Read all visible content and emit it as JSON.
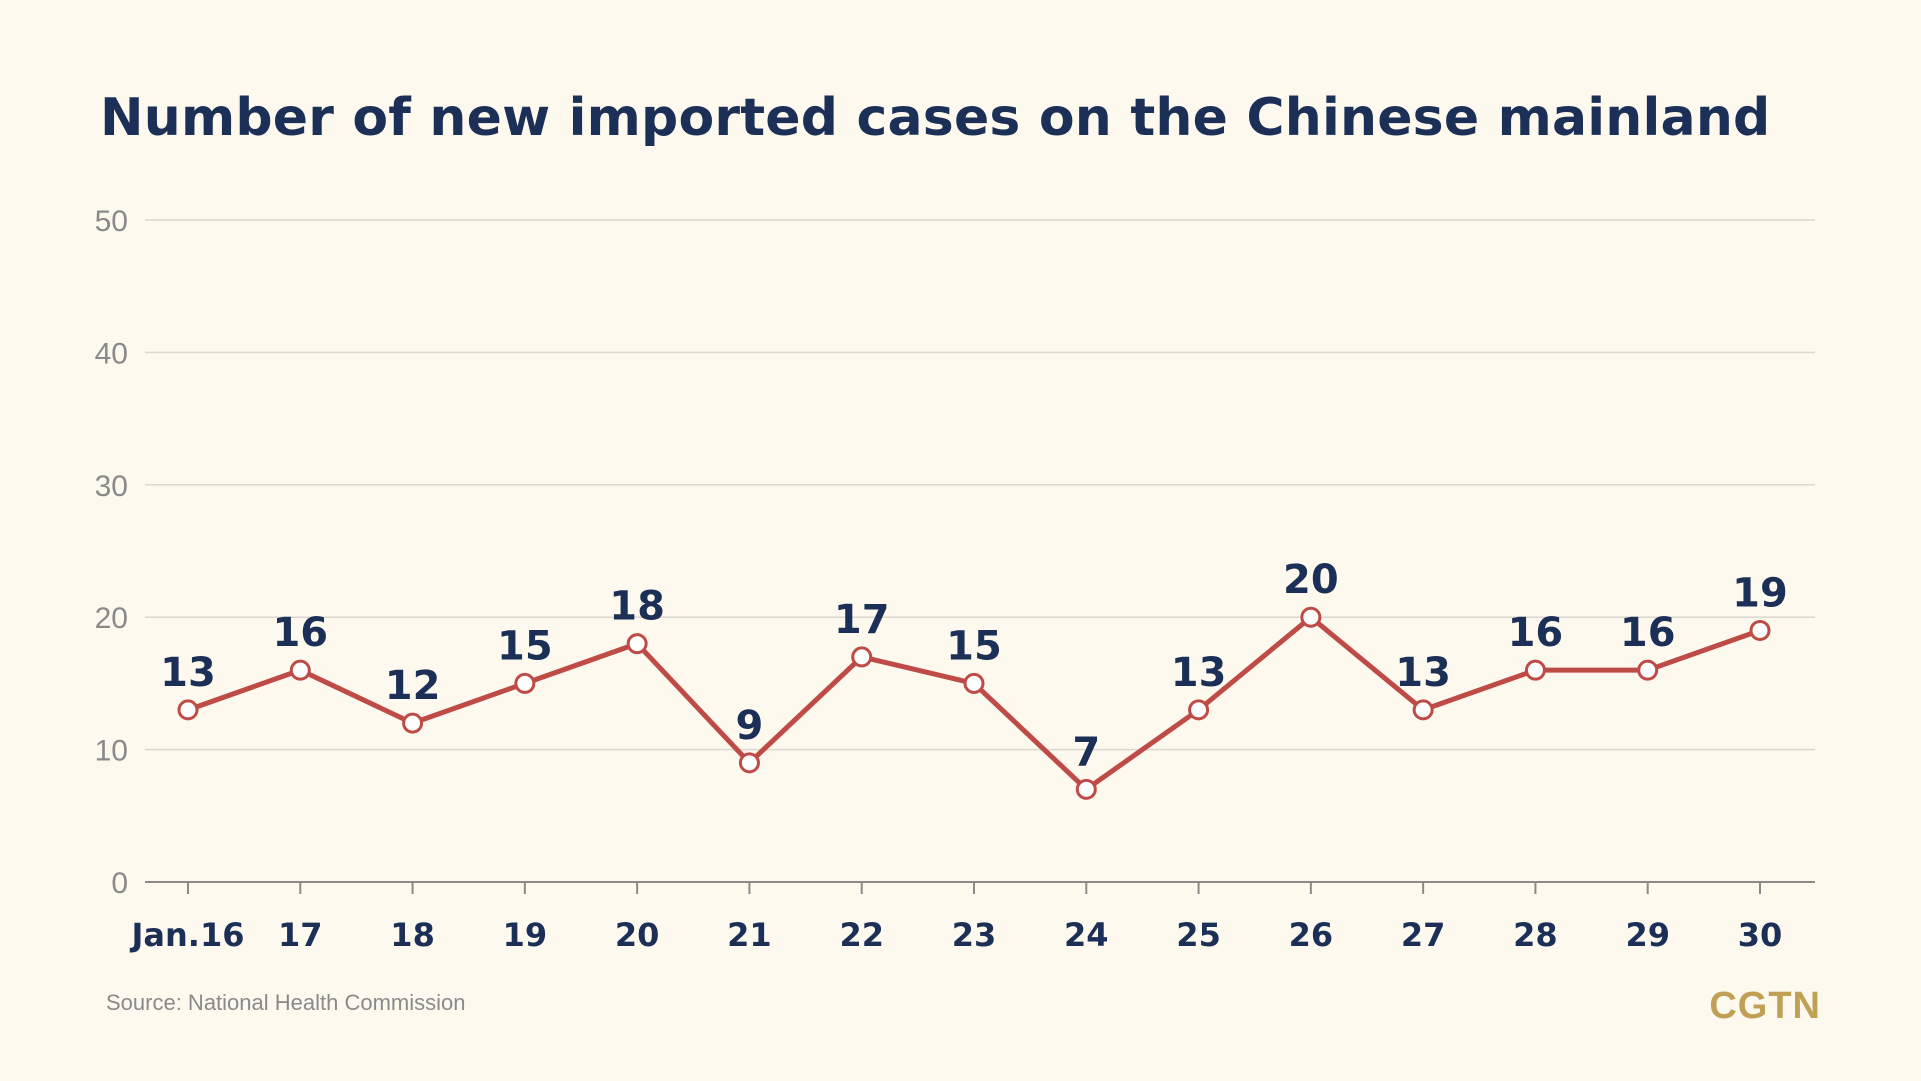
{
  "chart_data": {
    "type": "line",
    "title": "Number of new imported cases on the Chinese mainland",
    "categories": [
      "Jan.16",
      "17",
      "18",
      "19",
      "20",
      "21",
      "22",
      "23",
      "24",
      "25",
      "26",
      "27",
      "28",
      "29",
      "30"
    ],
    "series": [
      {
        "values": [
          13,
          16,
          12,
          15,
          18,
          9,
          17,
          15,
          7,
          13,
          20,
          13,
          16,
          16,
          19
        ]
      }
    ],
    "ylim": [
      0,
      50
    ],
    "yticks": [
      0,
      10,
      20,
      30,
      40,
      50
    ],
    "grid": true,
    "line_color": "#be4b45",
    "label_color": "#1c2f57"
  },
  "source": "Source: National Health Commission",
  "logo": "CGTN",
  "colors": {
    "background": "#fdf9ef",
    "title": "#1c2f57",
    "grid": "#dcd8cf",
    "axis": "#8a8a8a"
  }
}
